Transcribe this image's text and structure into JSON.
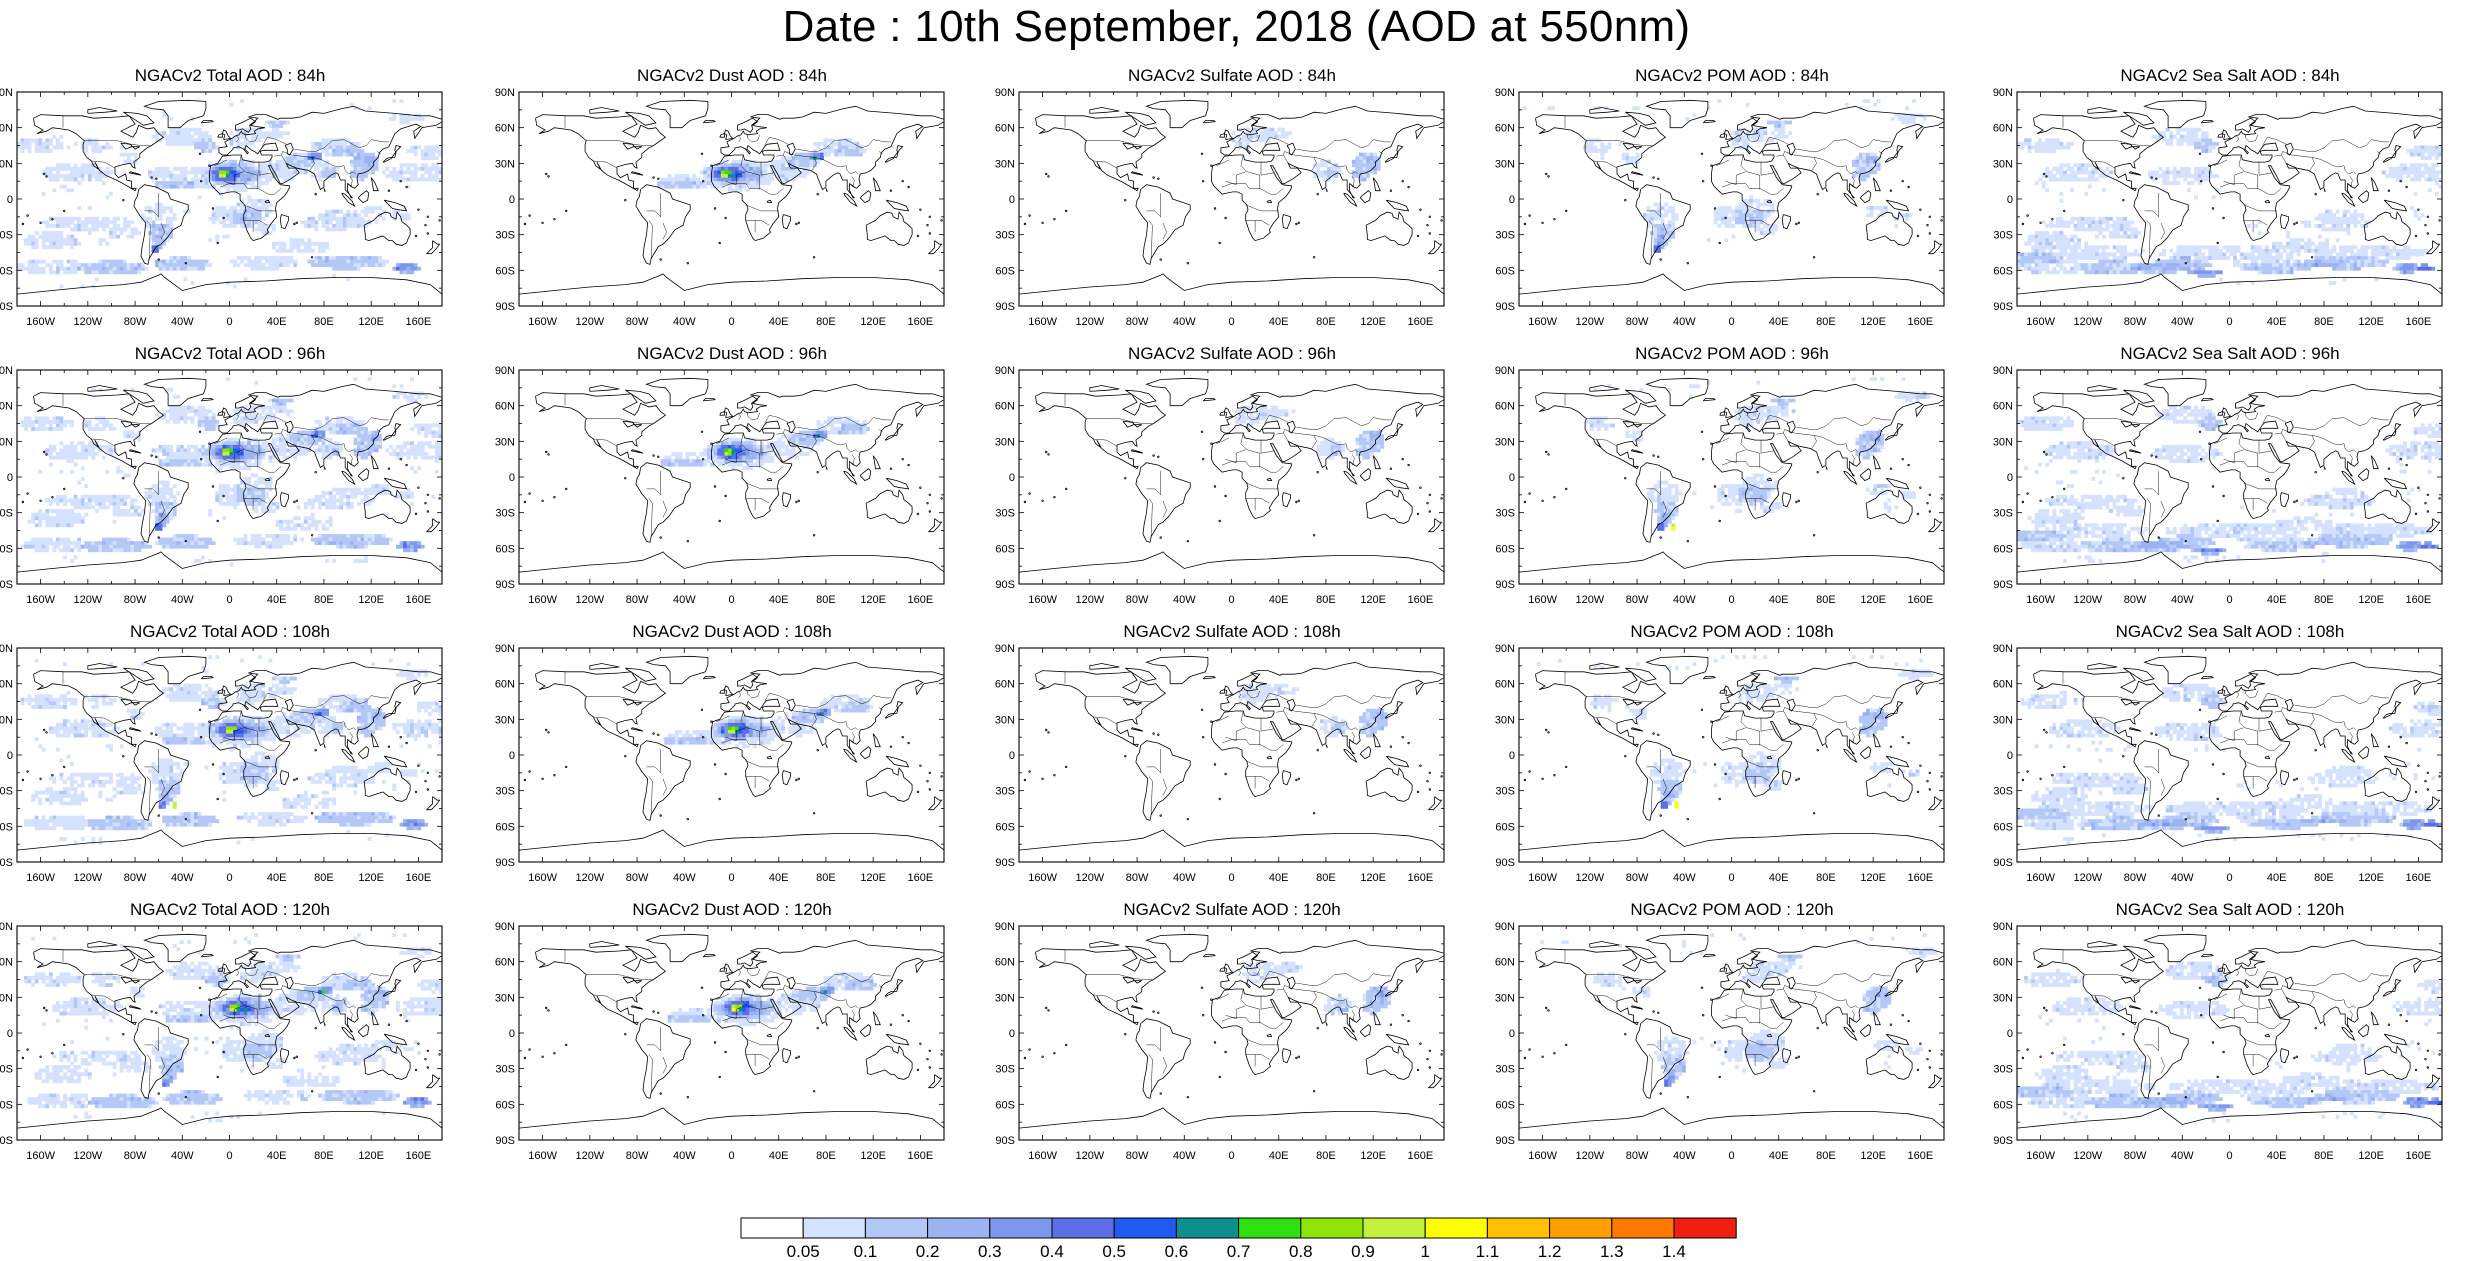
{
  "title": "Date : 10th September, 2018 (AOD at 550nm)",
  "columns": [
    "Total",
    "Dust",
    "Sulfate",
    "POM",
    "Sea Salt"
  ],
  "rows": [
    "84h",
    "96h",
    "108h",
    "120h"
  ],
  "panel_titles": [
    [
      "NGACv2 Total AOD : 84h",
      "NGACv2 Dust AOD : 84h",
      "NGACv2 Sulfate AOD : 84h",
      "NGACv2 POM AOD : 84h",
      "NGACv2 Sea Salt AOD : 84h"
    ],
    [
      "NGACv2 Total AOD : 96h",
      "NGACv2 Dust AOD : 96h",
      "NGACv2 Sulfate AOD : 96h",
      "NGACv2 POM AOD : 96h",
      "NGACv2 Sea Salt AOD : 96h"
    ],
    [
      "NGACv2 Total AOD : 108h",
      "NGACv2 Dust AOD : 108h",
      "NGACv2 Sulfate AOD : 108h",
      "NGACv2 POM AOD : 108h",
      "NGACv2 Sea Salt AOD : 108h"
    ],
    [
      "NGACv2 Total AOD : 120h",
      "NGACv2 Dust AOD : 120h",
      "NGACv2 Sulfate AOD : 120h",
      "NGACv2 POM AOD : 120h",
      "NGACv2 Sea Salt  AOD : 120h"
    ]
  ],
  "lat_labels": [
    "90N",
    "60N",
    "30N",
    "0",
    "30S",
    "60S",
    "90S"
  ],
  "lon_labels": [
    "160W",
    "120W",
    "80W",
    "40W",
    "0",
    "40E",
    "80E",
    "120E",
    "160E"
  ],
  "colorbar": {
    "labels": [
      "0.05",
      "0.1",
      "0.2",
      "0.3",
      "0.4",
      "0.5",
      "0.6",
      "0.7",
      "0.8",
      "0.9",
      "1",
      "1.1",
      "1.2",
      "1.3",
      "1.4"
    ],
    "colors": [
      "#ffffff",
      "#d5e2ff",
      "#b4c8f8",
      "#9cb3f2",
      "#7d97ee",
      "#5d6fe6",
      "#1f5bf0",
      "#0e8f8f",
      "#2ee00c",
      "#8ee40a",
      "#c2f03c",
      "#ffff00",
      "#ffc000",
      "#ffa000",
      "#ff7800",
      "#f02010"
    ]
  },
  "map_style": {
    "coast_color": "#000000",
    "border_color": "#000000"
  }
}
